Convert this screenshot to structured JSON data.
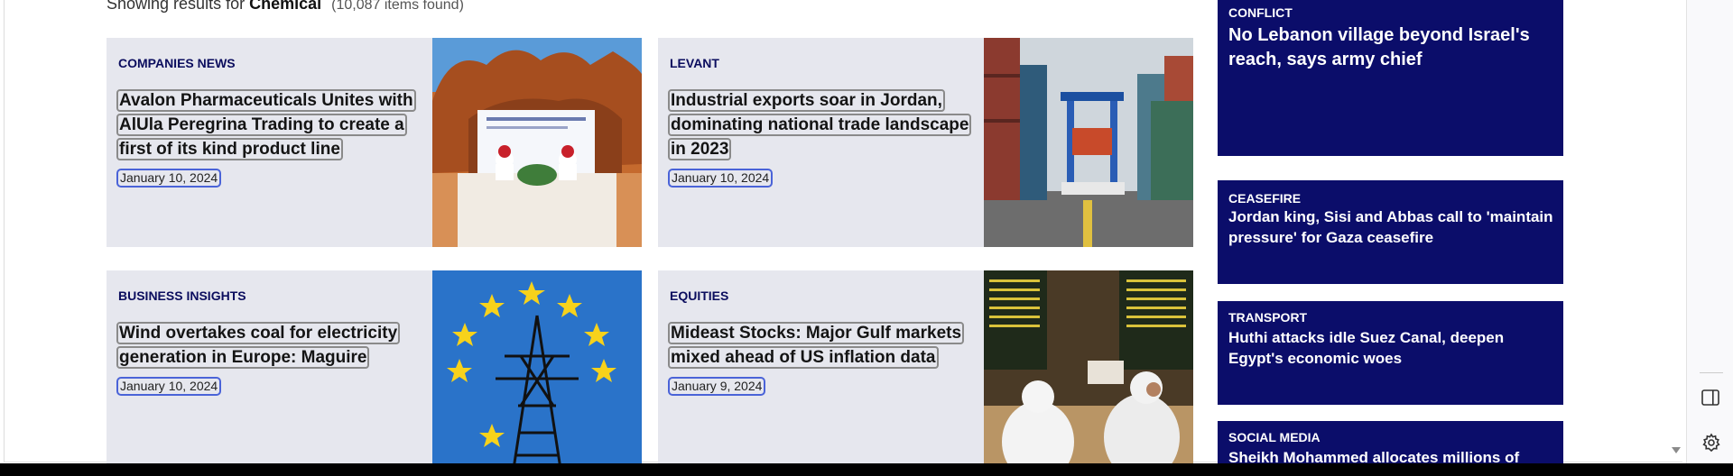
{
  "search": {
    "prefix": "Showing results for",
    "term": "Chemical",
    "count": "(10,087 items found)"
  },
  "articles": [
    {
      "category": "COMPANIES NEWS",
      "headline": "Avalon Pharmaceuticals Unites with AlUla Peregrina Trading to create a first of its kind product line",
      "date": "January 10, 2024",
      "image": "signing-ceremony-desert-photo"
    },
    {
      "category": "LEVANT",
      "headline": "Industrial exports soar in Jordan, dominating national trade landscape in 2023",
      "date": "January 10, 2024",
      "image": "shipping-containers-crane-photo"
    },
    {
      "category": "BUSINESS INSIGHTS",
      "headline": "Wind overtakes coal for electricity generation in Europe: Maguire",
      "date": "January 10, 2024",
      "image": "eu-flag-pylon-photo"
    },
    {
      "category": "EQUITIES",
      "headline": "Mideast Stocks: Major Gulf markets mixed ahead of US inflation data",
      "date": "January 9, 2024",
      "image": "stock-exchange-traders-photo"
    }
  ],
  "sidebar_stories": [
    {
      "category": "CONFLICT",
      "title": "No Lebanon village beyond Israel's reach, says army chief"
    },
    {
      "category": "CEASEFIRE",
      "title": "Jordan king, Sisi and Abbas call to 'maintain pressure' for Gaza ceasefire"
    },
    {
      "category": "TRANSPORT",
      "title": "Huthi attacks idle Suez Canal, deepen Egypt's economic woes"
    },
    {
      "category": "SOCIAL MEDIA",
      "title": "Sheikh Mohammed allocates millions of"
    }
  ],
  "icons": {
    "sidebar_toggle": "sidebar-toggle-icon",
    "settings": "gear-icon",
    "scroll": "chevron-down-icon"
  },
  "colors": {
    "card_bg": "#e6e7ee",
    "category": "#0b0d5e",
    "sidebar_bg": "#0b0d6a",
    "date_outline": "#4a63d8"
  }
}
